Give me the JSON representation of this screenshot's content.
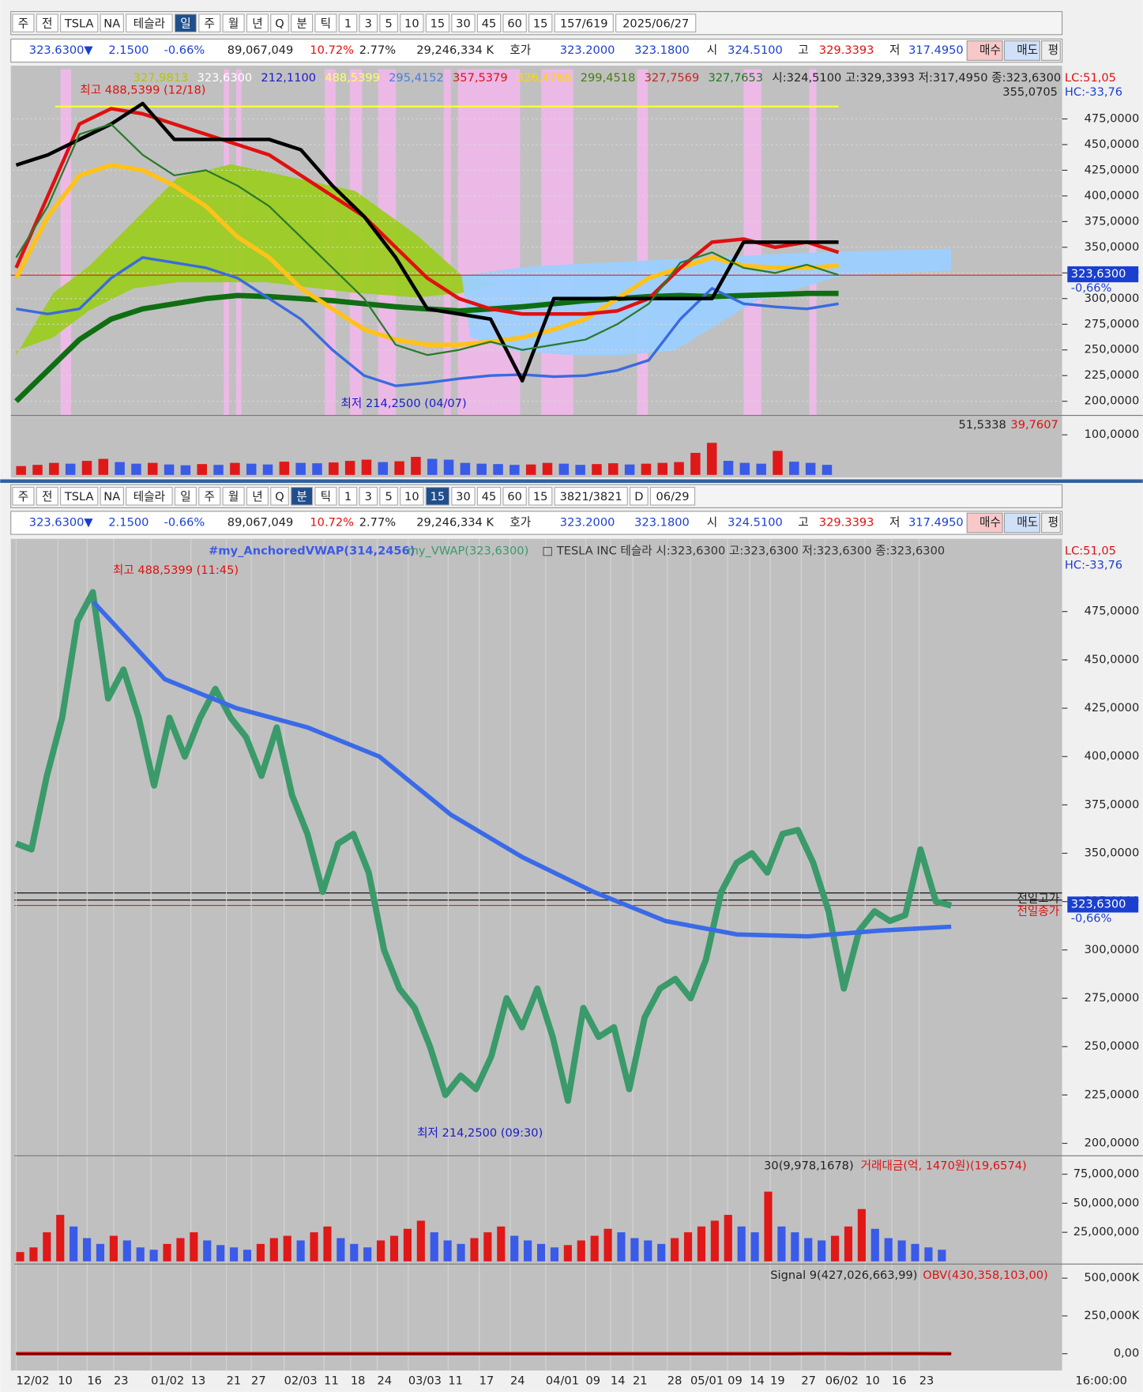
{
  "top": {
    "toolbar": [
      "주",
      "전",
      "TSLA",
      "NA",
      "테슬라",
      "일",
      "주",
      "월",
      "년",
      "Q",
      "분",
      "틱",
      "1",
      "3",
      "5",
      "10",
      "15",
      "30",
      "45",
      "60",
      "15",
      "157/619",
      "2025/06/27"
    ],
    "quote": [
      "323.6300▼",
      "2.1500",
      "-0.66%",
      "89,067,049",
      "10.72%",
      "2.77%",
      "29,246,334 K",
      "호가",
      "323.2000",
      "323.1800",
      "시",
      "324.5100",
      "고",
      "329.3393",
      "저",
      "317.4950",
      "매수",
      "매도",
      "평"
    ],
    "legend": [
      {
        "text": "327,9813",
        "color": "#b5c400"
      },
      {
        "text": "323,6300",
        "color": "#ffffff"
      },
      {
        "text": "212,1100",
        "color": "#1a1acc"
      },
      {
        "text": "488,5399",
        "color": "#ffff66"
      },
      {
        "text": "295,4152",
        "color": "#4a7ae0"
      },
      {
        "text": "357,5379",
        "color": "#dd1111"
      },
      {
        "text": "326,4766",
        "color": "#ffd700"
      },
      {
        "text": "299,4518",
        "color": "#4b7a13"
      },
      {
        "text": "327,7569",
        "color": "#cc2222"
      },
      {
        "text": "327,7653",
        "color": "#1a7a1a"
      },
      {
        "text": "시:324,5100 고:329,3393 저:317,4950 종:323,6300",
        "color": "#222222"
      }
    ],
    "high_label": "최고 488,5399 (12/18)",
    "low_label": "최저 214,2500 (04/07)",
    "max_label": "355,0705",
    "lc": "LC:51,05",
    "hc": "HC:-33,76",
    "last": "323,6300",
    "change": "-0,66%",
    "ylim": [
      188.8,
      523.4
    ],
    "yticks": [
      {
        "value": 475,
        "label": "475,0000"
      },
      {
        "value": 450,
        "label": "450,0000"
      },
      {
        "value": 425,
        "label": "425,0000"
      },
      {
        "value": 400,
        "label": "400,0000"
      },
      {
        "value": 375,
        "label": "375,0000"
      },
      {
        "value": 350,
        "label": "350,0000"
      },
      {
        "value": 325,
        "label": "325,0000"
      },
      {
        "value": 300,
        "label": "300,0000"
      },
      {
        "value": 275,
        "label": "275,0000"
      },
      {
        "value": 250,
        "label": "250,0000"
      },
      {
        "value": 225,
        "label": "225,0000"
      },
      {
        "value": 200,
        "label": "200,0000"
      }
    ],
    "series": [
      {
        "color": "#0f6e12",
        "width": 6,
        "values": [
          200,
          230,
          260,
          280,
          290,
          295,
          300,
          303,
          302,
          300,
          298,
          295,
          292,
          290,
          288,
          290,
          292,
          295,
          298,
          300,
          302,
          303,
          302,
          303,
          304,
          305,
          305
        ]
      },
      {
        "color": "#ffc21a",
        "width": 5,
        "values": [
          320,
          380,
          420,
          430,
          425,
          410,
          390,
          360,
          340,
          310,
          290,
          270,
          260,
          255,
          255,
          258,
          262,
          270,
          280,
          300,
          320,
          330,
          340,
          332,
          330,
          330,
          332
        ]
      },
      {
        "color": "#e01010",
        "width": 4,
        "values": [
          330,
          400,
          470,
          485,
          480,
          470,
          460,
          450,
          440,
          420,
          400,
          380,
          350,
          320,
          300,
          290,
          285,
          285,
          285,
          288,
          300,
          330,
          355,
          358,
          350,
          355,
          345
        ]
      },
      {
        "color": "#3a6ae0",
        "width": 3,
        "values": [
          290,
          285,
          290,
          320,
          340,
          335,
          330,
          320,
          300,
          280,
          250,
          225,
          215,
          218,
          222,
          225,
          226,
          224,
          225,
          230,
          240,
          280,
          310,
          295,
          292,
          290,
          295
        ]
      },
      {
        "color": "#000000",
        "width": 4,
        "values": [
          430,
          440,
          455,
          470,
          490,
          455,
          455,
          455,
          455,
          445,
          410,
          380,
          340,
          290,
          285,
          280,
          220,
          300,
          300,
          300,
          300,
          300,
          300,
          355,
          355,
          355,
          355
        ]
      },
      {
        "color": "#2a7a2a",
        "width": 2,
        "values": [
          340,
          390,
          460,
          470,
          440,
          420,
          425,
          410,
          390,
          360,
          330,
          300,
          255,
          245,
          250,
          258,
          250,
          255,
          260,
          275,
          295,
          335,
          345,
          330,
          325,
          333,
          323
        ]
      }
    ],
    "volume": {
      "labels": [
        "51,5338",
        "39,7607"
      ],
      "ylim": [
        0,
        144
      ],
      "yticks": [
        {
          "value": 100,
          "label": "100,0000"
        }
      ],
      "values": [
        22,
        25,
        30,
        28,
        35,
        40,
        32,
        28,
        30,
        26,
        24,
        27,
        25,
        30,
        28,
        26,
        33,
        30,
        29,
        31,
        35,
        38,
        32,
        34,
        45,
        40,
        38,
        30,
        28,
        27,
        25,
        26,
        30,
        28,
        25,
        27,
        29,
        26,
        28,
        30,
        32,
        55,
        80,
        35,
        30,
        28,
        60,
        33,
        30,
        25
      ]
    }
  },
  "bottom": {
    "toolbar": [
      "주",
      "전",
      "TSLA",
      "NA",
      "테슬라",
      "일",
      "주",
      "월",
      "년",
      "Q",
      "분",
      "틱",
      "1",
      "3",
      "5",
      "10",
      "15",
      "30",
      "45",
      "60",
      "15",
      "3821/3821",
      "D",
      "06/29"
    ],
    "quote": [
      "323.6300▼",
      "2.1500",
      "-0.66%",
      "89,067,049",
      "10.72%",
      "2.77%",
      "29,246,334 K",
      "호가",
      "323.2000",
      "323.1800",
      "시",
      "324.5100",
      "고",
      "329.3393",
      "저",
      "317.4950",
      "매수",
      "매도",
      "평"
    ],
    "legend": [
      {
        "text": "#my_AnchoredVWAP(314,2456)",
        "color": "#3a5ae8"
      },
      {
        "text": "my_VWAP(323,6300)",
        "color": "#3a9a6a"
      },
      {
        "text": "□ TESLA INC  테슬라 시:323,6300 고:323,6300 저:323,6300 종:323,6300",
        "color": "#333333"
      }
    ],
    "high_label": "최고 488,5399 (11:45)",
    "low_label": "최저 214,2500 (09:30)",
    "prev_high": "전일고가",
    "prev_close": "전일종가",
    "lc": "LC:51,05",
    "hc": "HC:-33,76",
    "last": "323,6300",
    "change": "-0,66%",
    "ylim": [
      194.5,
      512.6
    ],
    "yticks": [
      {
        "value": 475,
        "label": "475,0000"
      },
      {
        "value": 450,
        "label": "450,0000"
      },
      {
        "value": 425,
        "label": "425,0000"
      },
      {
        "value": 400,
        "label": "400,0000"
      },
      {
        "value": 375,
        "label": "375,0000"
      },
      {
        "value": 350,
        "label": "350,0000"
      },
      {
        "value": 325,
        "label": "325,0000"
      },
      {
        "value": 300,
        "label": "300,0000"
      },
      {
        "value": 275,
        "label": "275,0000"
      },
      {
        "value": 250,
        "label": "250,0000"
      },
      {
        "value": 225,
        "label": "225,0000"
      },
      {
        "value": 200,
        "label": "200,0000"
      }
    ],
    "price": {
      "color": "#3a9a6a",
      "values": [
        355,
        352,
        390,
        420,
        470,
        485,
        430,
        445,
        420,
        385,
        420,
        400,
        420,
        435,
        420,
        410,
        390,
        415,
        380,
        360,
        330,
        355,
        360,
        340,
        300,
        280,
        270,
        250,
        225,
        235,
        228,
        245,
        275,
        260,
        280,
        255,
        222,
        270,
        255,
        260,
        228,
        265,
        280,
        285,
        275,
        295,
        330,
        345,
        350,
        340,
        360,
        362,
        345,
        320,
        280,
        310,
        320,
        315,
        318,
        352,
        325,
        323
      ]
    },
    "vwap": {
      "color": "#3a6ae8",
      "values": [
        480,
        440,
        425,
        415,
        400,
        370,
        348,
        330,
        315,
        308,
        307,
        310,
        312
      ]
    },
    "volume": {
      "labels": [
        "30(9,978,1678)",
        "거래대금(억, 1470원)(19,6574)"
      ],
      "ylim": [
        0,
        88600000
      ],
      "yticks": [
        {
          "value": 75000000,
          "label": "75,000,000"
        },
        {
          "value": 50000000,
          "label": "50,000,000"
        },
        {
          "value": 25000000,
          "label": "25,000,000"
        }
      ],
      "values": [
        8000000,
        12000000,
        25000000,
        40000000,
        30000000,
        20000000,
        15000000,
        22000000,
        18000000,
        12000000,
        10000000,
        15000000,
        20000000,
        25000000,
        18000000,
        14000000,
        12000000,
        10000000,
        15000000,
        20000000,
        22000000,
        18000000,
        25000000,
        30000000,
        20000000,
        15000000,
        12000000,
        18000000,
        22000000,
        28000000,
        35000000,
        25000000,
        18000000,
        15000000,
        20000000,
        25000000,
        30000000,
        22000000,
        18000000,
        15000000,
        12000000,
        14000000,
        18000000,
        22000000,
        28000000,
        25000000,
        20000000,
        18000000,
        15000000,
        20000000,
        25000000,
        30000000,
        35000000,
        40000000,
        30000000,
        25000000,
        60000000,
        30000000,
        25000000,
        20000000,
        18000000,
        22000000,
        30000000,
        45000000,
        28000000,
        20000000,
        18000000,
        15000000,
        12000000,
        10000000
      ]
    },
    "obv": {
      "labels": [
        "Signal 9(427,026,663,99)",
        "OBV(430,358,103,00)"
      ],
      "ylim": [
        -88000,
        576000
      ],
      "yticks": [
        {
          "value": 500000,
          "label": "500,000K"
        },
        {
          "value": 250000,
          "label": "250,000K"
        },
        {
          "value": 0,
          "label": "0,00"
        }
      ],
      "values": [
        0,
        80,
        120,
        130,
        110,
        100,
        90,
        60,
        40,
        20,
        -10,
        -20,
        0,
        40,
        60,
        70,
        100,
        150,
        200,
        250,
        280,
        320,
        360,
        400,
        430,
        440,
        420,
        450,
        440,
        430
      ]
    },
    "xlabels": [
      "12/02",
      "10",
      "16",
      "23",
      "01/02",
      "13",
      "21",
      "27",
      "02/03",
      "11",
      "18",
      "24",
      "03/03",
      "11",
      "17",
      "24",
      "04/01",
      "09",
      "14",
      "21",
      "28",
      "05/01",
      "09",
      "14",
      "19",
      "27",
      "06/02",
      "10",
      "16",
      "23",
      "16:00:00"
    ]
  }
}
